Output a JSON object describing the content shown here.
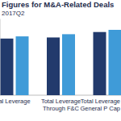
{
  "chart_data": {
    "type": "bar",
    "title": "Figures for M&A-Related Deals",
    "subtitle": "2017Q2",
    "categories": [
      "al Leverage",
      "Total Leverage Through F&C",
      "Total Leverage General P Cap"
    ],
    "series": [
      {
        "color": "#223a6c",
        "values": [
          5.2,
          5.3,
          5.8
        ]
      },
      {
        "color": "#3f9bd8",
        "values": [
          5.4,
          5.6,
          6.0
        ]
      }
    ],
    "ylim": [
      0,
      7
    ],
    "grid": false,
    "tick_labels": "x"
  }
}
